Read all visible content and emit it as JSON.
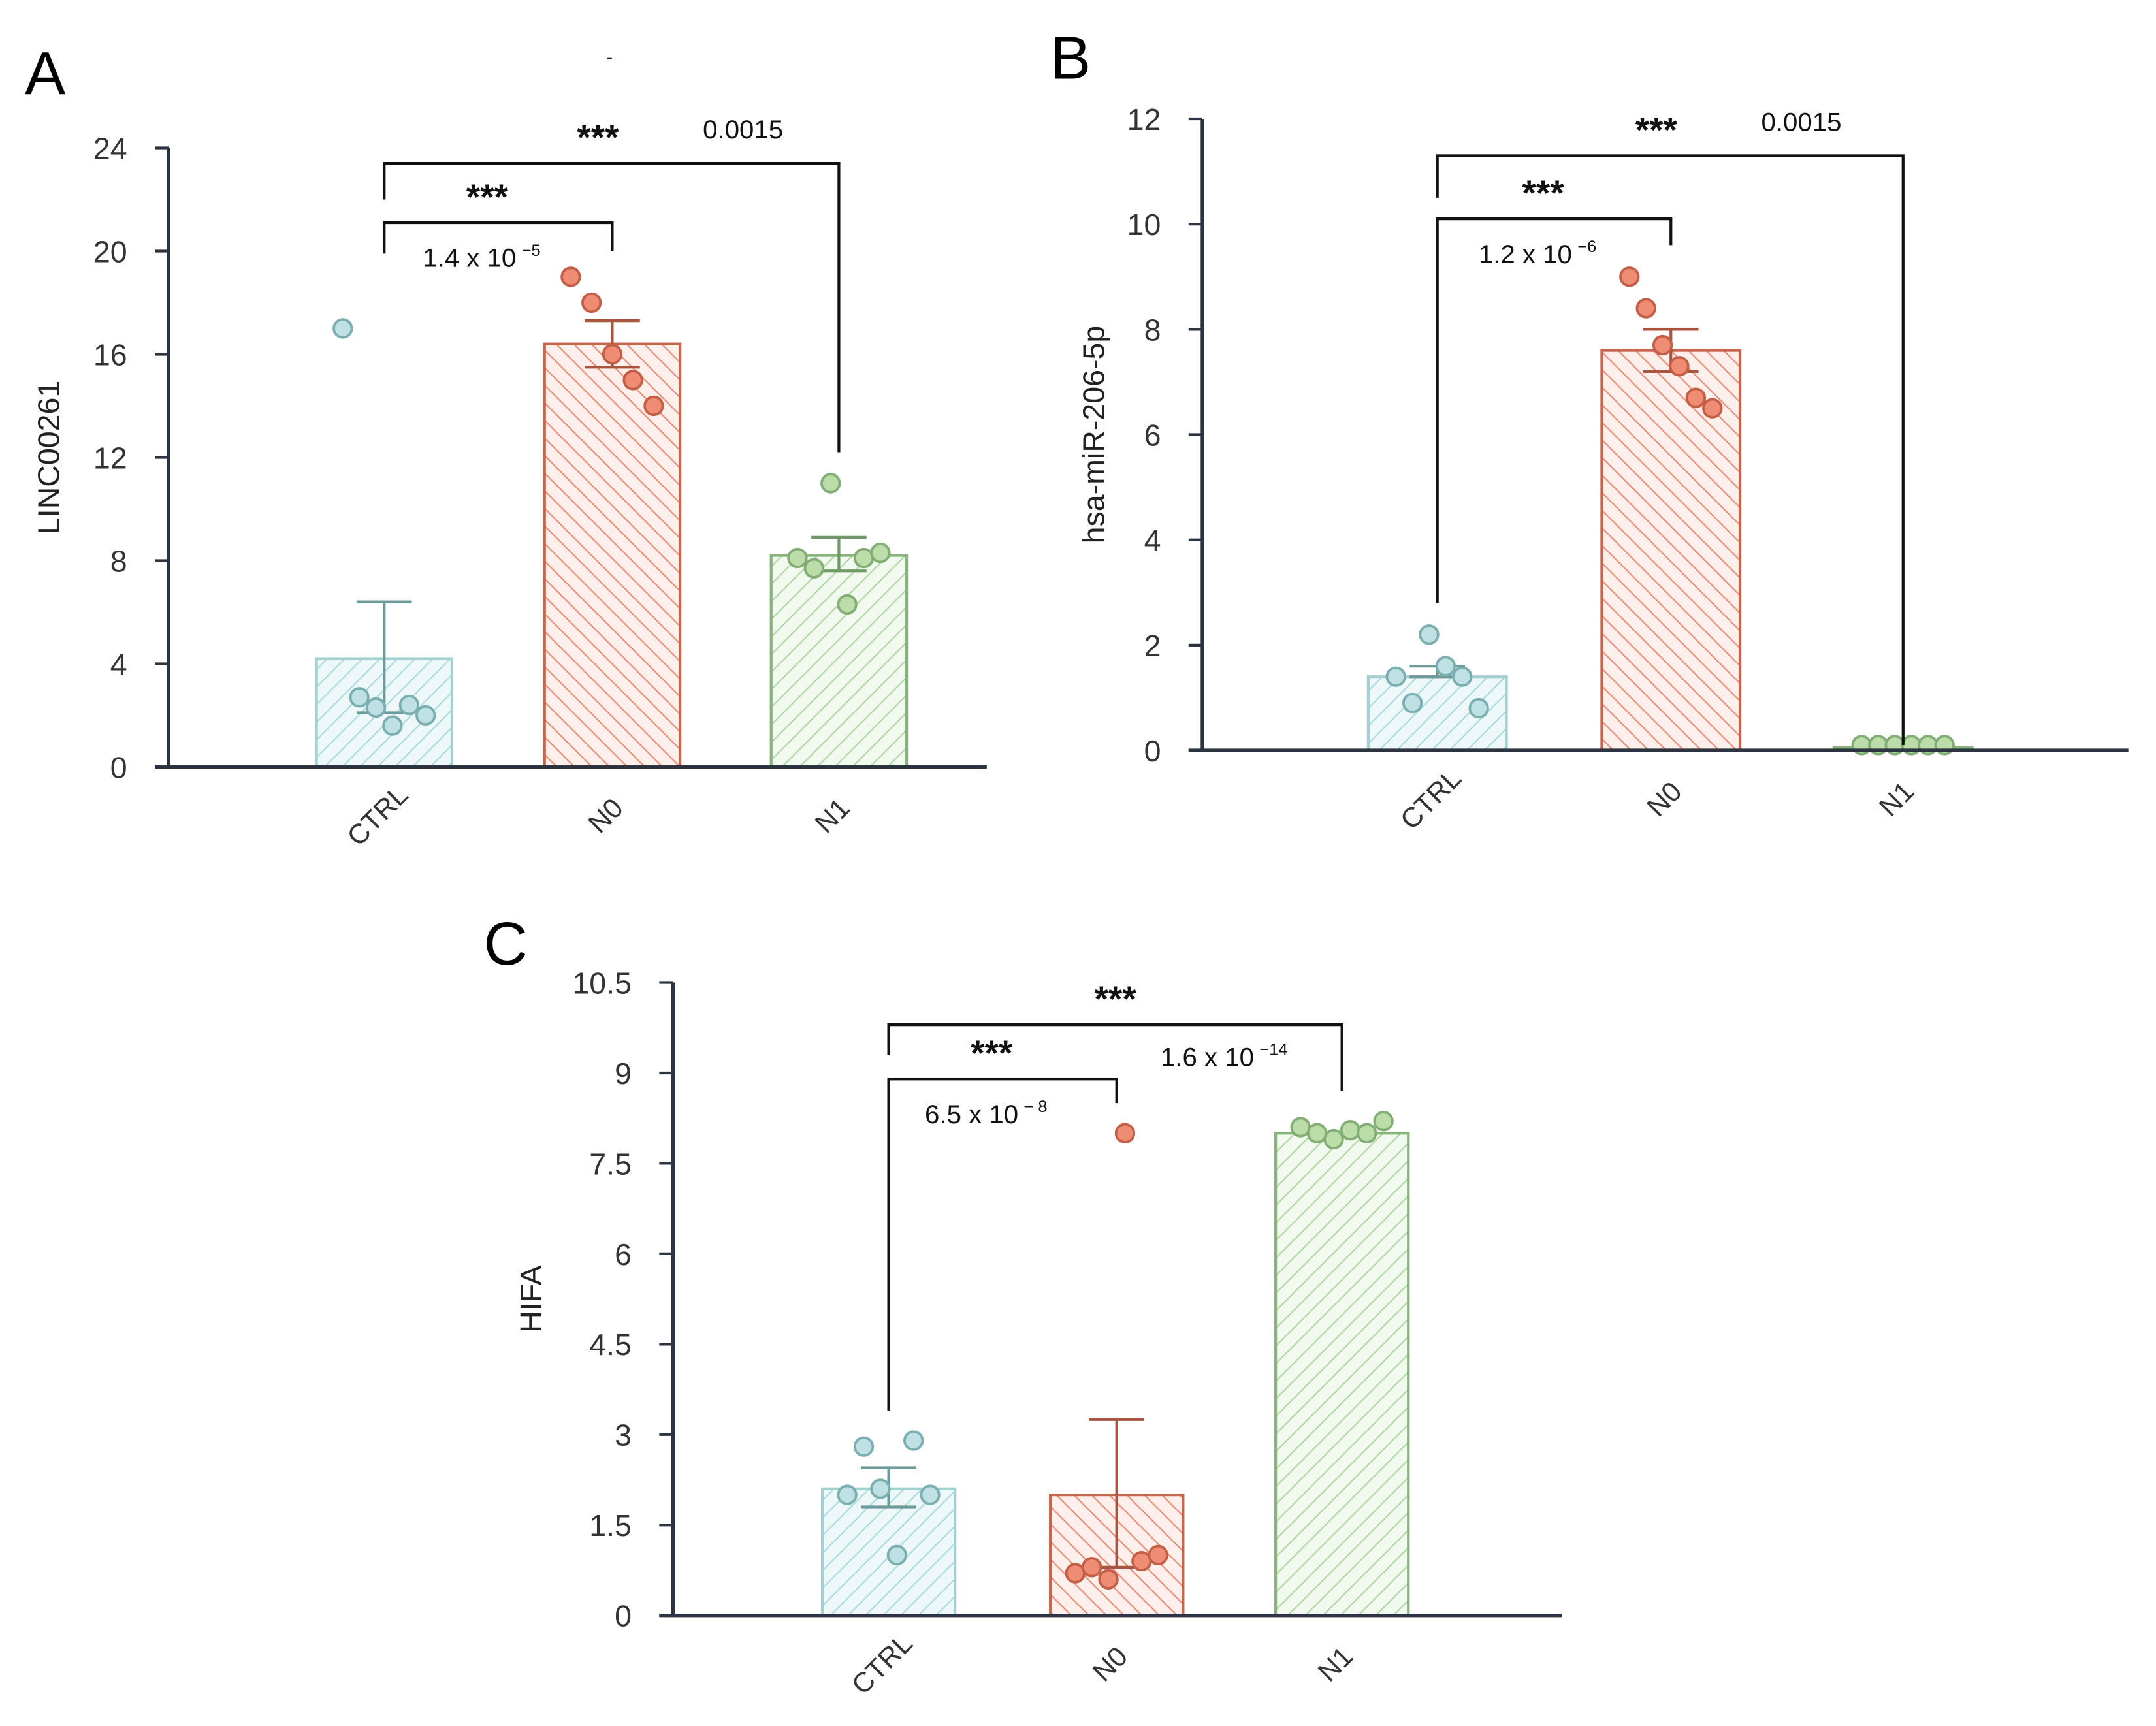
{
  "figure_note": "-",
  "chart_data": [
    {
      "type": "bar",
      "panel": "A",
      "title": "",
      "xlabel": "",
      "ylabel": "LINC00261",
      "ylim": [
        0,
        24
      ],
      "yticks": [
        "0",
        "4",
        "8",
        "12",
        "16",
        "20",
        "24"
      ],
      "ytick_values": [
        0,
        4,
        8,
        12,
        16,
        20,
        24
      ],
      "categories": [
        "CTRL",
        "N0",
        "N1"
      ],
      "values": [
        4.2,
        16.4,
        8.2
      ],
      "err_upper": [
        6.4,
        17.3,
        8.9
      ],
      "err_lower": [
        2.1,
        15.5,
        7.6
      ],
      "points": [
        [
          17.0,
          2.7,
          2.3,
          1.6,
          2.4,
          2.0
        ],
        [
          19.0,
          18.0,
          16.0,
          15.0,
          14.0
        ],
        [
          8.1,
          7.7,
          11.0,
          6.3,
          8.1,
          8.3
        ]
      ],
      "brackets": [
        {
          "from": 0,
          "to": 1,
          "top": 21.1,
          "left_end": 19.9,
          "right_end": 20.0,
          "stars": "***",
          "p_base": "1.4 x 10",
          "p_exp": "−5",
          "label_layout": "stars-above-p-below"
        },
        {
          "from": 0,
          "to": 2,
          "top": 23.4,
          "left_end": 22.0,
          "right_end": 12.2,
          "stars": "***",
          "p_base": "0.0015",
          "p_exp": "",
          "label_layout": "stars-above-p-right"
        }
      ]
    },
    {
      "type": "bar",
      "panel": "B",
      "title": "",
      "xlabel": "",
      "ylabel": "hsa-miR-206-5p",
      "ylim": [
        0,
        12
      ],
      "yticks": [
        "0",
        "2",
        "4",
        "6",
        "8",
        "10",
        "12"
      ],
      "ytick_values": [
        0,
        2,
        4,
        6,
        8,
        10,
        12
      ],
      "categories": [
        "CTRL",
        "N0",
        "N1"
      ],
      "values": [
        1.4,
        7.6,
        0.05
      ],
      "err_upper": [
        1.6,
        8.0,
        0.05
      ],
      "err_lower": [
        1.4,
        7.2,
        0.05
      ],
      "points": [
        [
          1.4,
          0.9,
          2.2,
          1.6,
          1.4,
          0.8
        ],
        [
          9.0,
          8.4,
          7.7,
          7.3,
          6.7,
          6.5
        ],
        [
          0.1,
          0.1,
          0.1,
          0.1,
          0.1,
          0.1
        ]
      ],
      "brackets": [
        {
          "from": 0,
          "to": 1,
          "top": 10.1,
          "left_end": 2.8,
          "right_end": 9.6,
          "stars": "***",
          "p_base": "1.2 x 10",
          "p_exp": "−6",
          "label_layout": "stars-above-p-below"
        },
        {
          "from": 0,
          "to": 2,
          "top": 11.3,
          "left_end": 10.5,
          "right_end": 0.1,
          "stars": "***",
          "p_base": "0.0015",
          "p_exp": "",
          "label_layout": "stars-above-p-right"
        }
      ]
    },
    {
      "type": "bar",
      "panel": "C",
      "title": "",
      "xlabel": "",
      "ylabel": "HIFA",
      "ylim": [
        0,
        10.5
      ],
      "yticks": [
        "0",
        "1.5",
        "3",
        "4.5",
        "6",
        "7.5",
        "9",
        "10.5"
      ],
      "ytick_values": [
        0,
        1.5,
        3,
        4.5,
        6,
        7.5,
        9,
        10.5
      ],
      "categories": [
        "CTRL",
        "N0",
        "N1"
      ],
      "values": [
        2.1,
        2.0,
        8.0
      ],
      "err_upper": [
        2.45,
        3.25,
        8.0
      ],
      "err_lower": [
        1.8,
        0.8,
        8.0
      ],
      "points": [
        [
          2.0,
          2.8,
          2.1,
          1.0,
          2.9,
          2.0
        ],
        [
          0.7,
          0.8,
          0.6,
          8.0,
          0.9,
          1.0
        ],
        [
          8.1,
          8.0,
          7.9,
          8.05,
          8.0,
          8.2
        ]
      ],
      "brackets": [
        {
          "from": 0,
          "to": 1,
          "top": 8.9,
          "left_end": 3.4,
          "right_end": 8.5,
          "stars": "***",
          "p_base": "6.5 x 10",
          "p_exp": "− 8",
          "label_layout": "stars-above-p-below"
        },
        {
          "from": 0,
          "to": 2,
          "top": 9.8,
          "left_end": 9.3,
          "right_end": 8.7,
          "stars": "***",
          "p_base": "1.6  x 10",
          "p_exp": "−14",
          "label_layout": "stars-above-p-below-right"
        }
      ]
    }
  ],
  "colors": {
    "ctrl_fill": "#eef8f8",
    "ctrl_hatch": "#a9dade",
    "ctrl_edge": "#a5cfd1",
    "ctrl_point": "#bfe1e3",
    "ctrl_point_edge": "#7aaeb1",
    "ctrl_err": "#6e9a9c",
    "n0_fill": "#fdf0ec",
    "n0_hatch": "#ec8a74",
    "n0_edge": "#c8644c",
    "n0_point": "#ee8c74",
    "n0_point_edge": "#c45e46",
    "n0_err": "#a85440",
    "n1_fill": "#f2f9ef",
    "n1_hatch": "#add7a3",
    "n1_edge": "#86b47b",
    "n1_point": "#bcdcaa",
    "n1_point_edge": "#82ad74",
    "n1_err": "#6f9a66",
    "axis": "#2b3440"
  }
}
